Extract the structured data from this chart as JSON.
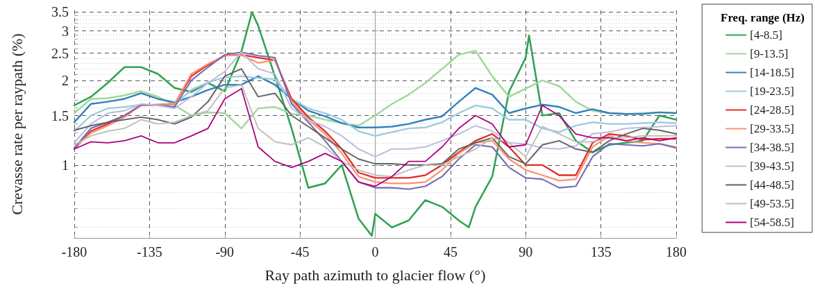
{
  "chart_data": {
    "type": "line",
    "xlabel": "Ray path azimuth to glacier flow (°)",
    "ylabel": "Crevasse rate per raypath (%)",
    "legend_title": "Freq. range (Hz)",
    "x": [
      -180,
      -170,
      -160,
      -150,
      -140,
      -130,
      -120,
      -110,
      -100,
      -90,
      -80,
      -70,
      -60,
      -50,
      -40,
      -30,
      -20,
      -10,
      0,
      10,
      20,
      30,
      40,
      50,
      60,
      70,
      80,
      90,
      100,
      110,
      120,
      130,
      140,
      150,
      160,
      170,
      180
    ],
    "series": [
      {
        "name": "[4-8.5]",
        "color": "#31a354",
        "x": [
          -180,
          -170,
          -160,
          -150,
          -140,
          -130,
          -120,
          -110,
          -100,
          -90,
          -80,
          -73.7,
          -70,
          -60,
          -50,
          -40,
          -30,
          -20,
          -10,
          -2,
          0,
          10,
          20,
          30,
          40,
          50,
          56,
          60,
          70,
          80,
          90,
          92,
          100,
          110,
          120,
          130,
          140,
          150,
          160,
          170,
          180
        ],
        "values": [
          1.63,
          1.75,
          1.96,
          2.23,
          2.23,
          2.11,
          1.88,
          1.82,
          1.96,
          1.83,
          2.54,
          3.5,
          3.13,
          2.07,
          1.35,
          0.83,
          0.86,
          1.0,
          0.645,
          0.56,
          0.67,
          0.6,
          0.635,
          0.75,
          0.71,
          0.635,
          0.6,
          0.71,
          0.91,
          1.82,
          2.41,
          2.89,
          1.5,
          1.53,
          1.22,
          1.11,
          1.18,
          1.2,
          1.22,
          1.5,
          1.45
        ]
      },
      {
        "name": "[9-13.5]",
        "color": "#a1d99b",
        "values": [
          1.53,
          1.72,
          1.73,
          1.77,
          1.83,
          1.75,
          1.63,
          1.5,
          1.54,
          1.53,
          1.35,
          1.59,
          1.61,
          1.52,
          1.5,
          1.45,
          1.41,
          1.38,
          1.5,
          1.65,
          1.78,
          1.96,
          2.2,
          2.47,
          2.55,
          2.07,
          1.75,
          1.87,
          2.0,
          1.91,
          1.68,
          1.56,
          1.53,
          1.52,
          1.53,
          1.54,
          1.53
        ]
      },
      {
        "name": "[14-18.5]",
        "color": "#3182bd",
        "values": [
          1.42,
          1.65,
          1.68,
          1.72,
          1.8,
          1.72,
          1.67,
          1.75,
          1.85,
          1.93,
          1.93,
          2.07,
          1.93,
          1.72,
          1.56,
          1.49,
          1.41,
          1.36,
          1.36,
          1.37,
          1.4,
          1.45,
          1.49,
          1.68,
          1.88,
          1.78,
          1.53,
          1.59,
          1.64,
          1.61,
          1.53,
          1.58,
          1.53,
          1.52,
          1.52,
          1.54,
          1.53
        ]
      },
      {
        "name": "[19-23.5]",
        "color": "#9ecae1",
        "values": [
          1.32,
          1.5,
          1.59,
          1.61,
          1.64,
          1.64,
          1.64,
          1.85,
          1.97,
          2.05,
          2.07,
          2.04,
          2.02,
          1.72,
          1.59,
          1.53,
          1.45,
          1.32,
          1.27,
          1.31,
          1.35,
          1.36,
          1.42,
          1.53,
          1.63,
          1.59,
          1.45,
          1.45,
          1.35,
          1.31,
          1.38,
          1.42,
          1.4,
          1.4,
          1.41,
          1.42,
          1.41
        ]
      },
      {
        "name": "[24-28.5]",
        "color": "#de2d26",
        "values": [
          1.14,
          1.32,
          1.4,
          1.5,
          1.63,
          1.64,
          1.65,
          2.07,
          2.27,
          2.45,
          2.47,
          2.41,
          2.36,
          1.72,
          1.48,
          1.32,
          1.14,
          0.94,
          0.9,
          0.9,
          0.9,
          0.92,
          1.0,
          1.11,
          1.22,
          1.29,
          1.16,
          1.0,
          1.0,
          0.92,
          0.92,
          1.2,
          1.29,
          1.27,
          1.23,
          1.24,
          1.24
        ]
      },
      {
        "name": "[29-33.5]",
        "color": "#fc9272",
        "values": [
          1.15,
          1.3,
          1.38,
          1.48,
          1.63,
          1.64,
          1.65,
          2.11,
          2.29,
          2.45,
          2.46,
          2.31,
          2.36,
          1.68,
          1.45,
          1.29,
          1.1,
          0.91,
          0.87,
          0.86,
          0.86,
          0.87,
          0.96,
          1.1,
          1.2,
          1.22,
          1.05,
          0.96,
          0.92,
          0.88,
          0.89,
          1.16,
          1.27,
          1.22,
          1.2,
          1.19,
          1.16
        ]
      },
      {
        "name": "[34-38.5]",
        "color": "#756bb1",
        "values": [
          1.15,
          1.35,
          1.42,
          1.5,
          1.64,
          1.63,
          1.61,
          2.0,
          2.23,
          2.47,
          2.52,
          2.45,
          2.41,
          1.65,
          1.42,
          1.22,
          1.03,
          0.87,
          0.83,
          0.83,
          0.82,
          0.84,
          0.91,
          1.05,
          1.18,
          1.16,
          0.98,
          0.9,
          0.89,
          0.83,
          0.84,
          1.07,
          1.19,
          1.18,
          1.17,
          1.19,
          1.15
        ]
      },
      {
        "name": "[39-43.5]",
        "color": "#bcbddc",
        "values": [
          1.2,
          1.4,
          1.53,
          1.56,
          1.65,
          1.63,
          1.59,
          1.75,
          1.96,
          2.15,
          2.52,
          2.2,
          2.11,
          1.59,
          1.45,
          1.37,
          1.27,
          1.14,
          1.07,
          1.14,
          1.14,
          1.16,
          1.22,
          1.29,
          1.38,
          1.32,
          1.2,
          1.19,
          1.15,
          1.14,
          1.17,
          1.29,
          1.31,
          1.35,
          1.36,
          1.37,
          1.38
        ]
      },
      {
        "name": "[44-48.5]",
        "color": "#636363",
        "values": [
          1.33,
          1.38,
          1.42,
          1.45,
          1.48,
          1.45,
          1.4,
          1.48,
          1.68,
          2.07,
          2.2,
          1.75,
          1.8,
          1.5,
          1.37,
          1.25,
          1.14,
          1.05,
          1.01,
          1.01,
          1.0,
          1.0,
          1.01,
          1.14,
          1.2,
          1.25,
          1.07,
          1.01,
          1.18,
          1.22,
          1.14,
          1.11,
          1.22,
          1.29,
          1.35,
          1.33,
          1.29
        ]
      },
      {
        "name": "[49-53.5]",
        "color": "#bdbdbd",
        "values": [
          1.18,
          1.27,
          1.32,
          1.35,
          1.45,
          1.4,
          1.42,
          1.5,
          1.56,
          1.88,
          1.93,
          1.35,
          1.21,
          1.18,
          1.25,
          1.16,
          1.03,
          0.96,
          0.92,
          0.91,
          0.96,
          1.0,
          1.0,
          1.07,
          1.14,
          1.25,
          1.2,
          1.07,
          1.37,
          1.29,
          1.21,
          1.21,
          1.25,
          1.25,
          1.27,
          1.27,
          1.27
        ]
      },
      {
        "name": "[54-58.5]",
        "color": "#ae017e",
        "values": [
          1.14,
          1.21,
          1.2,
          1.22,
          1.27,
          1.2,
          1.2,
          1.27,
          1.35,
          1.72,
          1.87,
          1.16,
          1.03,
          0.98,
          1.03,
          1.1,
          1.03,
          0.87,
          0.84,
          0.91,
          1.03,
          1.03,
          1.16,
          1.35,
          1.5,
          1.4,
          1.16,
          1.18,
          1.63,
          1.5,
          1.29,
          1.25,
          1.25,
          1.22,
          1.25,
          1.22,
          1.25
        ]
      }
    ],
    "xlim": [
      -180,
      180
    ],
    "xticks": [
      -180,
      -135,
      -90,
      -45,
      0,
      45,
      90,
      135,
      180
    ],
    "ylim": [
      0.55,
      3.55
    ],
    "yticks": [
      {
        "value": 0.6,
        "label": null
      },
      {
        "value": 0.7,
        "label": null
      },
      {
        "value": 0.8,
        "label": null
      },
      {
        "value": 0.9,
        "label": null
      },
      1,
      {
        "value": 1.1,
        "label": null
      },
      {
        "value": 1.2,
        "label": null
      },
      {
        "value": 1.3,
        "label": null
      },
      {
        "value": 1.4,
        "label": null
      },
      1.5,
      {
        "value": 1.6,
        "label": null
      },
      {
        "value": 1.7,
        "label": null
      },
      {
        "value": 1.8,
        "label": null
      },
      {
        "value": 1.9,
        "label": null
      },
      2,
      {
        "value": 2.1,
        "label": null
      },
      {
        "value": 2.2,
        "label": null
      },
      {
        "value": 2.3,
        "label": null
      },
      {
        "value": 2.4,
        "label": null
      },
      2.5,
      {
        "value": 2.6,
        "label": null
      },
      {
        "value": 2.7,
        "label": null
      },
      {
        "value": 2.8,
        "label": null
      },
      {
        "value": 2.9,
        "label": null
      },
      3,
      {
        "value": 3.1,
        "label": null
      },
      {
        "value": 3.2,
        "label": null
      },
      {
        "value": 3.3,
        "label": null
      },
      {
        "value": 3.4,
        "label": null
      },
      3.5
    ],
    "log": "y",
    "grid": true,
    "legend": "right",
    "marker": "none",
    "line_style": "solid"
  }
}
